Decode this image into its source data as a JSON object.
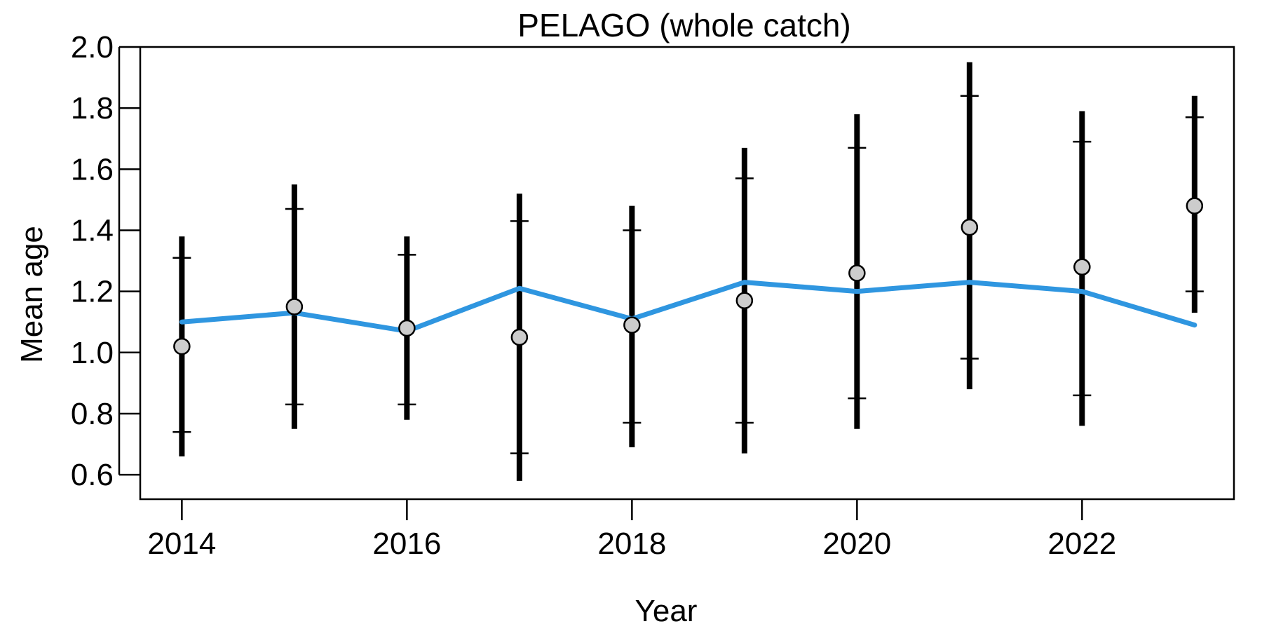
{
  "chart_data": {
    "type": "line",
    "title": "PELAGO (whole catch)",
    "xlabel": "Year",
    "ylabel": "Mean age",
    "xlim": [
      2013.63,
      2023.35
    ],
    "ylim": [
      0.52,
      2.0
    ],
    "x_ticks": [
      "2014",
      "2016",
      "2018",
      "2020",
      "2022"
    ],
    "y_ticks": [
      "0.6",
      "0.8",
      "1.0",
      "1.2",
      "1.4",
      "1.6",
      "1.8",
      "2.0"
    ],
    "grid": false,
    "legend": "none",
    "colors": {
      "line": "#2f96e0",
      "point_fill": "#cccccc",
      "bars": "#000000"
    },
    "x": [
      2014,
      2015,
      2016,
      2017,
      2018,
      2019,
      2020,
      2021,
      2022,
      2023
    ],
    "observed_mean": [
      1.02,
      1.15,
      1.08,
      1.05,
      1.09,
      1.17,
      1.26,
      1.41,
      1.28,
      1.48
    ],
    "interval_outer_low": [
      0.66,
      0.75,
      0.78,
      0.58,
      0.69,
      0.67,
      0.75,
      0.88,
      0.76,
      1.13
    ],
    "interval_outer_high": [
      1.38,
      1.55,
      1.38,
      1.52,
      1.48,
      1.67,
      1.78,
      1.95,
      1.79,
      1.84
    ],
    "interval_inner_low": [
      0.74,
      0.83,
      0.83,
      0.67,
      0.77,
      0.77,
      0.85,
      0.98,
      0.86,
      1.2
    ],
    "interval_inner_high": [
      1.31,
      1.47,
      1.32,
      1.43,
      1.4,
      1.57,
      1.67,
      1.84,
      1.69,
      1.77
    ],
    "expected_mean": [
      1.1,
      1.13,
      1.07,
      1.21,
      1.11,
      1.23,
      1.2,
      1.23,
      1.2,
      1.09
    ]
  }
}
